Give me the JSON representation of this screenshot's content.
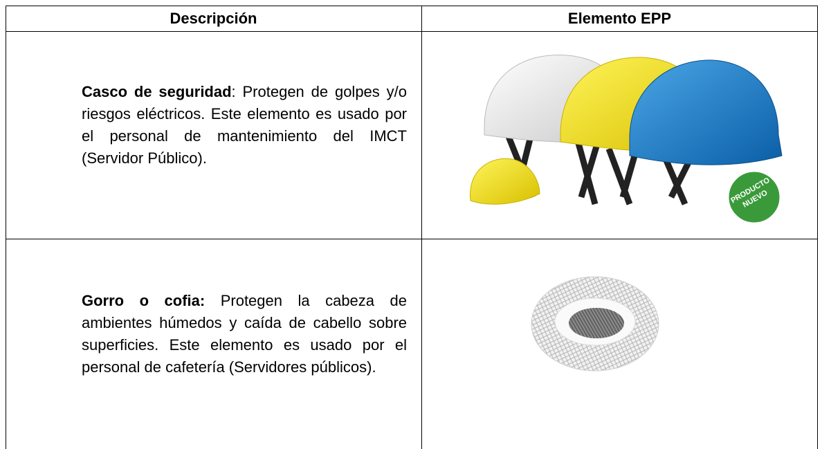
{
  "table": {
    "headers": [
      "Descripción",
      "Elemento EPP"
    ],
    "rows": [
      {
        "term": "Casco de seguridad",
        "text": ": Protegen de golpes y/o riesgos eléctricos. Este elemento es usado por el personal de mantenimiento del IMCT (Servidor Público).",
        "badge": [
          "PRODUCTO",
          "NUEVO"
        ]
      },
      {
        "term": "Gorro o cofia:",
        "text": "Protegen la cabeza de ambientes húmedos y caída de cabello sobre superficies. Este elemento es usado por el personal de cafetería (Servidores públicos)."
      }
    ]
  }
}
